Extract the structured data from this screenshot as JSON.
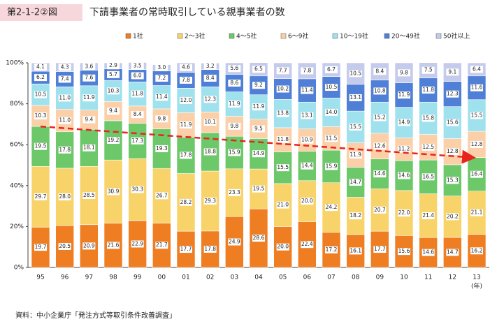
{
  "chart_data": {
    "type": "stacked_bar",
    "figure_label": "第2-1-2②図",
    "title": "下請事業者の常時取引している親事業者の数",
    "source": "資料：中小企業庁「発注方式等取引条件改善調査」",
    "x_unit": "(年)",
    "categories": [
      "95",
      "96",
      "97",
      "98",
      "99",
      "00",
      "01",
      "02",
      "03",
      "04",
      "05",
      "06",
      "07",
      "08",
      "09",
      "10",
      "11",
      "12",
      "13"
    ],
    "ylim": [
      0,
      100
    ],
    "yticks": [
      {
        "value": 0,
        "label": "0%"
      },
      {
        "value": 20,
        "label": "20%"
      },
      {
        "value": 40,
        "label": "40%"
      },
      {
        "value": 60,
        "label": "60%"
      },
      {
        "value": 80,
        "label": "80%"
      },
      {
        "value": 100,
        "label": "100%"
      }
    ],
    "grid": false,
    "legend": "top",
    "series": [
      {
        "name": "1社",
        "color": "#ef7d22",
        "values": [
          19.7,
          20.5,
          20.9,
          21.6,
          22.9,
          21.7,
          17.7,
          17.8,
          24.9,
          28.6,
          20.0,
          22.4,
          17.2,
          16.1,
          17.7,
          15.6,
          14.6,
          14.7,
          16.2
        ],
        "value_labels": [
          "19.7",
          "20.5",
          "20.9",
          "21.6",
          "22.9",
          "21.7",
          "17.7",
          "17.8",
          "24.9",
          "28.6",
          "20.0",
          "22.4",
          "17.2",
          "16.1",
          "17.7",
          "15.6",
          "14.6",
          "14.7",
          "16.2"
        ]
      },
      {
        "name": "2～3社",
        "color": "#f8d36a",
        "values": [
          29.7,
          28.0,
          28.5,
          30.9,
          30.3,
          26.7,
          28.2,
          29.3,
          23.3,
          19.5,
          21.0,
          20.0,
          24.2,
          18.2,
          20.7,
          22.0,
          21.4,
          20.2,
          21.1
        ],
        "value_labels": [
          "29.7",
          "28.0",
          "28.5",
          "30.9",
          "30.3",
          "26.7",
          "28.2",
          "29.3",
          "23.3",
          "19.5",
          "21.0",
          "20.0",
          "24.2",
          "18.2",
          "20.7",
          "22.0",
          "21.4",
          "20.2",
          "21.1"
        ]
      },
      {
        "name": "4～5社",
        "color": "#6cc868",
        "values": [
          19.5,
          17.8,
          18.1,
          19.2,
          17.3,
          19.3,
          17.8,
          18.8,
          15.9,
          14.9,
          15.5,
          14.4,
          15.9,
          14.7,
          14.6,
          14.6,
          16.5,
          15.3,
          16.4
        ],
        "value_labels": [
          "19.5",
          "17.8",
          "18.1",
          "19.2",
          "17.3",
          "19.3",
          "17.8",
          "18.8",
          "15.9",
          "14.9",
          "15.5",
          "14.4",
          "15.9",
          "14.7",
          "14.6",
          "14.6",
          "16.5",
          "15.3",
          "16.4"
        ]
      },
      {
        "name": "6～9社",
        "color": "#fbd0a8",
        "values": [
          10.3,
          11.0,
          9.4,
          9.4,
          8.4,
          9.8,
          11.9,
          10.1,
          9.8,
          9.5,
          11.8,
          10.9,
          11.5,
          11.9,
          12.6,
          11.2,
          12.5,
          12.8,
          12.8
        ],
        "value_labels": [
          "10.3",
          "11.0",
          "9.4",
          "9.4",
          "8.4",
          "9.8",
          "11.9",
          "10.1",
          "9.8",
          "9.5",
          "11.8",
          "10.9",
          "11.5",
          "11.9",
          "12.6",
          "11.2",
          "12.5",
          "12.8",
          "12.8"
        ]
      },
      {
        "name": "10～19社",
        "color": "#9fe2ee",
        "values": [
          10.5,
          11.0,
          11.9,
          10.3,
          11.8,
          11.4,
          12.0,
          12.3,
          11.9,
          11.9,
          13.8,
          13.1,
          14.0,
          15.5,
          15.2,
          14.9,
          15.8,
          15.6,
          15.5
        ],
        "value_labels": [
          "10.5",
          "11.0",
          "11.9",
          "10.3",
          "11.8",
          "11.4",
          "12.0",
          "12.3",
          "11.9",
          "11.9",
          "13.8",
          "13.1",
          "14.0",
          "15.5",
          "15.2",
          "14.9",
          "15.8",
          "15.6",
          "15.5"
        ]
      },
      {
        "name": "20～49社",
        "color": "#4f7fd6",
        "values": [
          6.2,
          7.4,
          7.6,
          5.7,
          6.0,
          7.2,
          7.8,
          8.4,
          8.6,
          9.2,
          10.2,
          11.4,
          10.5,
          13.1,
          10.8,
          11.9,
          11.8,
          12.3,
          11.6
        ],
        "value_labels": [
          "6.2",
          "7.4",
          "7.6",
          "5.7",
          "6.0",
          "7.2",
          "7.8",
          "8.4",
          "8.6",
          "9.2",
          "10.2",
          "11.4",
          "10.5",
          "13.1",
          "10.8",
          "11.9",
          "11.8",
          "12.3",
          "11.6"
        ]
      },
      {
        "name": "50社以上",
        "color": "#c5cbec",
        "values": [
          4.1,
          4.3,
          3.6,
          2.9,
          3.5,
          3.0,
          4.6,
          3.2,
          5.6,
          6.5,
          7.7,
          7.8,
          6.7,
          10.5,
          8.4,
          9.8,
          7.5,
          9.1,
          6.4
        ],
        "value_labels": [
          "4.1",
          "4.3",
          "3.6",
          "2.9",
          "3.5",
          "3.0",
          "4.6",
          "3.2",
          "5.6",
          "6.5",
          "7.7",
          "7.8",
          "6.7",
          "10.5",
          "8.4",
          "9.8",
          "7.5",
          "9.1",
          "6.4"
        ]
      }
    ]
  }
}
